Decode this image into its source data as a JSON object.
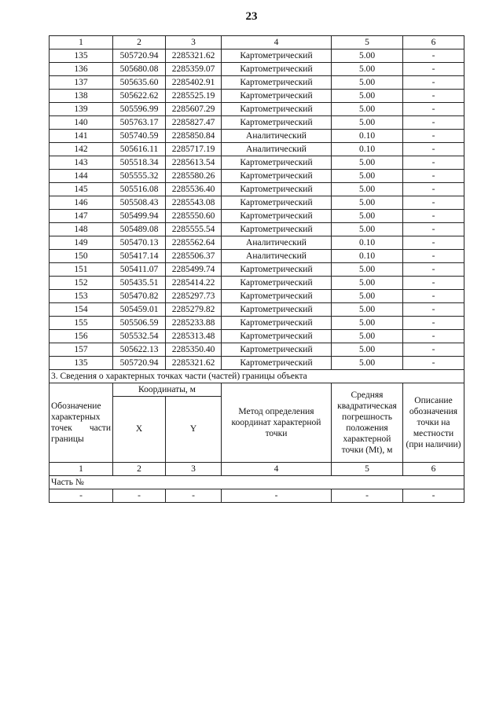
{
  "page_number": "23",
  "col_numbers": [
    "1",
    "2",
    "3",
    "4",
    "5",
    "6"
  ],
  "rows": [
    [
      "135",
      "505720.94",
      "2285321.62",
      "Картометрический",
      "5.00",
      "-"
    ],
    [
      "136",
      "505680.08",
      "2285359.07",
      "Картометрический",
      "5.00",
      "-"
    ],
    [
      "137",
      "505635.60",
      "2285402.91",
      "Картометрический",
      "5.00",
      "-"
    ],
    [
      "138",
      "505622.62",
      "2285525.19",
      "Картометрический",
      "5.00",
      "-"
    ],
    [
      "139",
      "505596.99",
      "2285607.29",
      "Картометрический",
      "5.00",
      "-"
    ],
    [
      "140",
      "505763.17",
      "2285827.47",
      "Картометрический",
      "5.00",
      "-"
    ],
    [
      "141",
      "505740.59",
      "2285850.84",
      "Аналитический",
      "0.10",
      "-"
    ],
    [
      "142",
      "505616.11",
      "2285717.19",
      "Аналитический",
      "0.10",
      "-"
    ],
    [
      "143",
      "505518.34",
      "2285613.54",
      "Картометрический",
      "5.00",
      "-"
    ],
    [
      "144",
      "505555.32",
      "2285580.26",
      "Картометрический",
      "5.00",
      "-"
    ],
    [
      "145",
      "505516.08",
      "2285536.40",
      "Картометрический",
      "5.00",
      "-"
    ],
    [
      "146",
      "505508.43",
      "2285543.08",
      "Картометрический",
      "5.00",
      "-"
    ],
    [
      "147",
      "505499.94",
      "2285550.60",
      "Картометрический",
      "5.00",
      "-"
    ],
    [
      "148",
      "505489.08",
      "2285555.54",
      "Картометрический",
      "5.00",
      "-"
    ],
    [
      "149",
      "505470.13",
      "2285562.64",
      "Аналитический",
      "0.10",
      "-"
    ],
    [
      "150",
      "505417.14",
      "2285506.37",
      "Аналитический",
      "0.10",
      "-"
    ],
    [
      "151",
      "505411.07",
      "2285499.74",
      "Картометрический",
      "5.00",
      "-"
    ],
    [
      "152",
      "505435.51",
      "2285414.22",
      "Картометрический",
      "5.00",
      "-"
    ],
    [
      "153",
      "505470.82",
      "2285297.73",
      "Картометрический",
      "5.00",
      "-"
    ],
    [
      "154",
      "505459.01",
      "2285279.82",
      "Картометрический",
      "5.00",
      "-"
    ],
    [
      "155",
      "505506.59",
      "2285233.88",
      "Картометрический",
      "5.00",
      "-"
    ],
    [
      "156",
      "505532.54",
      "2285313.48",
      "Картометрический",
      "5.00",
      "-"
    ],
    [
      "157",
      "505622.13",
      "2285350.40",
      "Картометрический",
      "5.00",
      "-"
    ],
    [
      "135",
      "505720.94",
      "2285321.62",
      "Картометрический",
      "5.00",
      "-"
    ]
  ],
  "section3": {
    "title": "3. Сведения о характерных точках части (частей) границы объекта",
    "headers": {
      "col1": "Обозначение характерных точек части границы",
      "coords": "Координаты, м",
      "x": "X",
      "y": "Y",
      "method": "Метод определения координат характерной точки",
      "error": "Средняя квадратическая погрешность положения характерной точки (Mt), м",
      "desc": "Описание обозначения точки на местности (при наличии)"
    },
    "part_label": "Часть №",
    "empty_row": [
      "-",
      "-",
      "-",
      "-",
      "-",
      "-"
    ]
  }
}
